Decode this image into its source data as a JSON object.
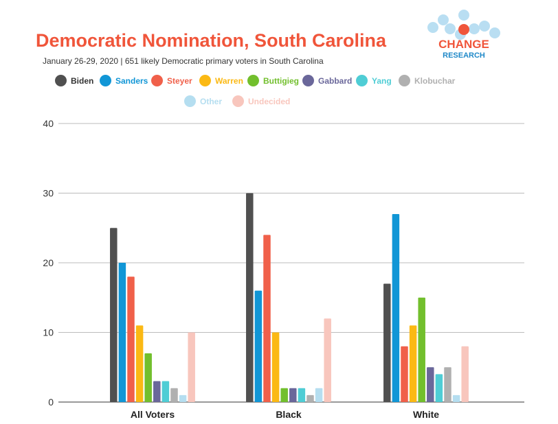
{
  "chart_data": {
    "type": "bar",
    "title": "Democratic Nomination, South Carolina",
    "subtitle": "January 26-29, 2020 | 651 likely Democratic primary voters in South Carolina",
    "logo": {
      "line1": "CHANGE",
      "line2": "RESEARCH"
    },
    "categories": [
      "All Voters",
      "Black",
      "White"
    ],
    "ylim": [
      0,
      40
    ],
    "yticks": [
      "0",
      "10",
      "20",
      "30",
      "40"
    ],
    "grid": true,
    "legend_position": "top",
    "series": [
      {
        "name": "Biden",
        "color": "#505050",
        "values": [
          25,
          30,
          17
        ]
      },
      {
        "name": "Sanders",
        "color": "#1196d6",
        "values": [
          20,
          16,
          27
        ]
      },
      {
        "name": "Steyer",
        "color": "#f0604a",
        "values": [
          18,
          24,
          8
        ]
      },
      {
        "name": "Warren",
        "color": "#fbb914",
        "values": [
          11,
          10,
          11
        ]
      },
      {
        "name": "Buttigieg",
        "color": "#72bf2d",
        "values": [
          7,
          2,
          15
        ]
      },
      {
        "name": "Gabbard",
        "color": "#6a679a",
        "values": [
          3,
          2,
          5
        ]
      },
      {
        "name": "Yang",
        "color": "#4fcdd5",
        "values": [
          3,
          2,
          4
        ]
      },
      {
        "name": "Klobuchar",
        "color": "#b0b0b0",
        "values": [
          2,
          1,
          5
        ]
      },
      {
        "name": "Other",
        "color": "#b5def0",
        "values": [
          1,
          2,
          1
        ]
      },
      {
        "name": "Undecided",
        "color": "#f8c6bd",
        "values": [
          10,
          12,
          8
        ]
      }
    ]
  }
}
